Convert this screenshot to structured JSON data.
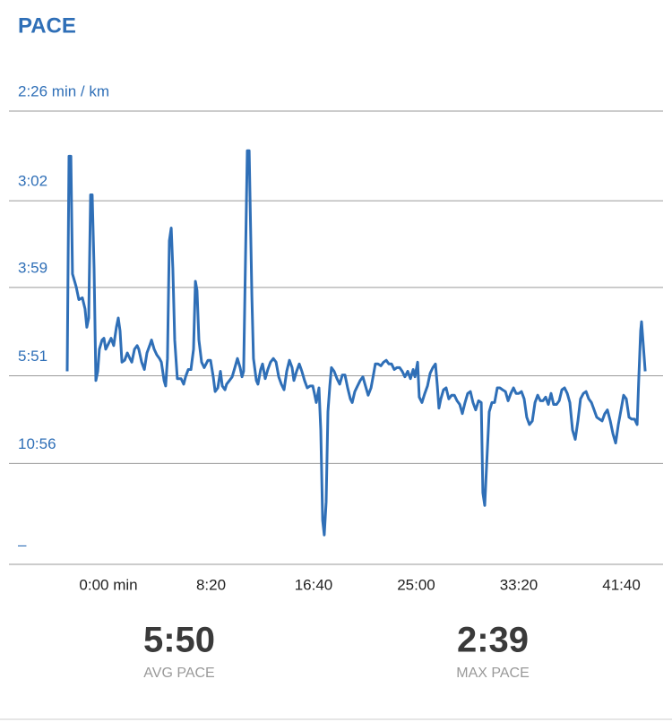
{
  "chart_data": {
    "type": "line",
    "title": "PACE",
    "color": "#2f6fb7",
    "grid": true,
    "xlim": [
      -441,
      2703
    ],
    "ylim": [
      0,
      24.658
    ],
    "xticks": [
      {
        "value": 0,
        "label": "0:00 min"
      },
      {
        "value": 500,
        "label": "8:20"
      },
      {
        "value": 1000,
        "label": "16:40"
      },
      {
        "value": 1500,
        "label": "25:00"
      },
      {
        "value": 2000,
        "label": "33:20"
      },
      {
        "value": 2500,
        "label": "41:40"
      }
    ],
    "yticks": [
      {
        "value": 24.658,
        "label": "2:26 min / km"
      },
      {
        "value": 19.78,
        "label": "3:02"
      },
      {
        "value": 15.063,
        "label": "3:59"
      },
      {
        "value": 10.256,
        "label": "5:51"
      },
      {
        "value": 5.488,
        "label": "10:56"
      },
      {
        "value": 0,
        "label": "–"
      }
    ],
    "x": [
      -201,
      -192,
      -183,
      -175,
      -157,
      -144,
      -127,
      -114,
      -105,
      -96,
      -87,
      -79,
      -70,
      -61,
      -52,
      -44,
      -31,
      -22,
      -13,
      0,
      13,
      26,
      39,
      48,
      57,
      66,
      79,
      92,
      105,
      114,
      127,
      140,
      148,
      162,
      175,
      188,
      201,
      210,
      223,
      236,
      249,
      258,
      271,
      279,
      288,
      297,
      306,
      314,
      323,
      336,
      354,
      367,
      376,
      389,
      402,
      415,
      424,
      432,
      441,
      454,
      467,
      485,
      498,
      511,
      520,
      533,
      546,
      555,
      568,
      576,
      590,
      603,
      616,
      629,
      642,
      651,
      659,
      677,
      686,
      699,
      707,
      721,
      729,
      742,
      751,
      764,
      777,
      790,
      804,
      817,
      830,
      843,
      856,
      869,
      882,
      895,
      904,
      917,
      930,
      943,
      956,
      969,
      983,
      996,
      1004,
      1013,
      1026,
      1035,
      1044,
      1052,
      1061,
      1070,
      1079,
      1087,
      1100,
      1114,
      1127,
      1140,
      1153,
      1166,
      1179,
      1188,
      1201,
      1214,
      1227,
      1240,
      1253,
      1266,
      1280,
      1293,
      1301,
      1314,
      1328,
      1341,
      1354,
      1367,
      1380,
      1393,
      1406,
      1419,
      1432,
      1445,
      1459,
      1472,
      1485,
      1494,
      1507,
      1515,
      1528,
      1542,
      1555,
      1568,
      1581,
      1594,
      1603,
      1611,
      1620,
      1633,
      1646,
      1659,
      1673,
      1686,
      1699,
      1712,
      1725,
      1738,
      1751,
      1764,
      1777,
      1790,
      1804,
      1817,
      1825,
      1834,
      1843,
      1856,
      1869,
      1882,
      1895,
      1908,
      1921,
      1935,
      1948,
      1961,
      1974,
      1987,
      2000,
      2013,
      2026,
      2039,
      2052,
      2066,
      2079,
      2092,
      2105,
      2118,
      2131,
      2144,
      2157,
      2170,
      2184,
      2197,
      2210,
      2223,
      2236,
      2249,
      2262,
      2275,
      2288,
      2301,
      2315,
      2328,
      2341,
      2354,
      2367,
      2380,
      2393,
      2406,
      2419,
      2432,
      2446,
      2459,
      2472,
      2485,
      2498,
      2511,
      2524,
      2537,
      2550,
      2564,
      2577,
      2585,
      2594,
      2598,
      2607,
      2616
    ],
    "values": [
      10.5,
      22.2,
      22.2,
      15.8,
      15.1,
      14.4,
      14.5,
      13.9,
      12.9,
      13.4,
      20.1,
      20.1,
      16.1,
      10.0,
      10.5,
      11.7,
      12.2,
      12.3,
      11.7,
      12.0,
      12.3,
      11.9,
      12.9,
      13.4,
      12.7,
      11.0,
      11.1,
      11.5,
      11.2,
      11.0,
      11.7,
      11.9,
      11.7,
      11.0,
      10.6,
      11.5,
      11.9,
      12.2,
      11.7,
      11.4,
      11.2,
      11.0,
      10.0,
      9.7,
      11.2,
      17.6,
      18.3,
      16.1,
      12.2,
      10.1,
      10.1,
      9.8,
      10.2,
      10.6,
      10.6,
      11.7,
      15.4,
      14.9,
      12.2,
      11.0,
      10.7,
      11.1,
      11.1,
      10.2,
      9.4,
      9.6,
      10.5,
      9.7,
      9.5,
      9.8,
      10.0,
      10.2,
      10.7,
      11.2,
      10.7,
      10.2,
      10.5,
      22.5,
      22.5,
      14.6,
      11.2,
      10.0,
      9.8,
      10.6,
      10.9,
      10.1,
      10.6,
      11.0,
      11.2,
      11.0,
      10.2,
      9.8,
      9.5,
      10.5,
      11.1,
      10.7,
      10.0,
      10.5,
      10.9,
      10.5,
      10.0,
      9.6,
      9.7,
      9.7,
      9.3,
      8.8,
      9.6,
      7.3,
      2.4,
      1.6,
      3.4,
      8.3,
      9.7,
      10.7,
      10.5,
      10.1,
      9.8,
      10.3,
      10.3,
      9.6,
      9.0,
      8.8,
      9.4,
      9.7,
      10.0,
      10.2,
      9.7,
      9.2,
      9.6,
      10.4,
      10.9,
      10.9,
      10.8,
      11.0,
      11.1,
      10.9,
      10.9,
      10.6,
      10.7,
      10.7,
      10.5,
      10.2,
      10.5,
      10.1,
      10.6,
      10.2,
      11.0,
      9.1,
      8.8,
      9.3,
      9.7,
      10.4,
      10.7,
      10.9,
      9.7,
      8.5,
      9.0,
      9.5,
      9.6,
      9.0,
      9.2,
      9.2,
      8.9,
      8.7,
      8.2,
      8.8,
      9.3,
      9.4,
      8.8,
      8.4,
      8.9,
      8.8,
      3.9,
      3.2,
      5.4,
      8.3,
      8.8,
      8.8,
      9.6,
      9.6,
      9.5,
      9.4,
      8.9,
      9.3,
      9.6,
      9.3,
      9.3,
      9.4,
      9.0,
      8.0,
      7.6,
      7.8,
      8.8,
      9.2,
      8.9,
      8.9,
      9.1,
      8.7,
      9.3,
      8.7,
      8.7,
      8.9,
      9.5,
      9.6,
      9.3,
      8.8,
      7.3,
      6.8,
      7.8,
      9.0,
      9.3,
      9.4,
      9.0,
      8.8,
      8.4,
      8.0,
      7.9,
      7.8,
      8.2,
      8.4,
      7.8,
      7.1,
      6.6,
      7.6,
      8.4,
      9.2,
      9.0,
      8.0,
      7.9,
      7.9,
      7.6,
      10.2,
      12.7,
      13.2,
      11.9,
      10.5
    ]
  },
  "stats": [
    {
      "value": "5:50",
      "label": "AVG PACE"
    },
    {
      "value": "2:39",
      "label": "MAX PACE"
    }
  ]
}
